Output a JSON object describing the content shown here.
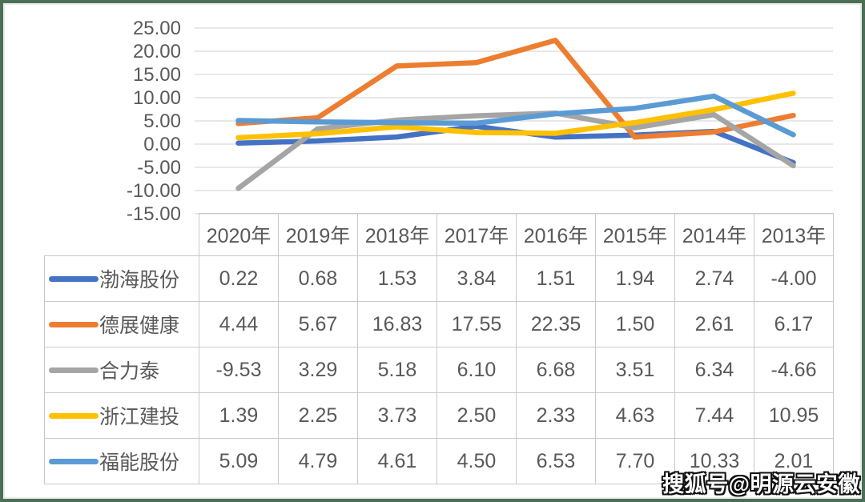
{
  "frame": {
    "border_color": "#4a6f55",
    "background": "#ffffff"
  },
  "chart_data": {
    "type": "line",
    "categories": [
      "2020年",
      "2019年",
      "2018年",
      "2017年",
      "2016年",
      "2015年",
      "2014年",
      "2013年"
    ],
    "series": [
      {
        "name": "渤海股份",
        "color": "#4472C4",
        "values": [
          0.22,
          0.68,
          1.53,
          3.84,
          1.51,
          1.94,
          2.74,
          -4.0
        ]
      },
      {
        "name": "德展健康",
        "color": "#ED7D31",
        "values": [
          4.44,
          5.67,
          16.83,
          17.55,
          22.35,
          1.5,
          2.61,
          6.17
        ]
      },
      {
        "name": "合力泰",
        "color": "#A5A5A5",
        "values": [
          -9.53,
          3.29,
          5.18,
          6.1,
          6.68,
          3.51,
          6.34,
          -4.66
        ]
      },
      {
        "name": "浙江建投",
        "color": "#FFC000",
        "values": [
          1.39,
          2.25,
          3.73,
          2.5,
          2.33,
          4.63,
          7.44,
          10.95
        ]
      },
      {
        "name": "福能股份",
        "color": "#5B9BD5",
        "values": [
          5.09,
          4.79,
          4.61,
          4.5,
          6.53,
          7.7,
          10.33,
          2.01
        ]
      }
    ],
    "title": "",
    "xlabel": "",
    "ylabel": "",
    "ylim": [
      -15,
      25
    ],
    "ytick_step": 5,
    "ytick_labels": [
      "25.00",
      "20.00",
      "15.00",
      "10.00",
      "5.00",
      "0.00",
      "-5.00",
      "-10.00",
      "-15.00"
    ],
    "grid": true,
    "gridline_color": "#d9d9d9",
    "axis_label_color": "#595959",
    "legend_position": "table-left-column",
    "value_decimals": 2
  },
  "watermark": {
    "text": "搜狐号@明源云安徽"
  }
}
